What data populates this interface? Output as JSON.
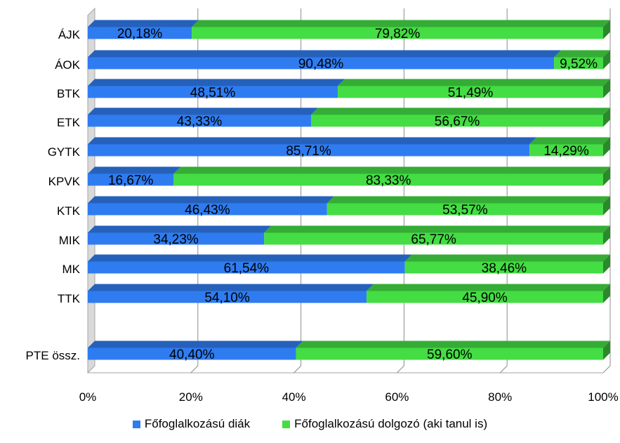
{
  "chart_data": {
    "type": "bar",
    "orientation": "horizontal",
    "stacked": "percent",
    "categories": [
      "ÁJK",
      "ÁOK",
      "BTK",
      "ETK",
      "GYTK",
      "KPVK",
      "KTK",
      "MIK",
      "MK",
      "TTK",
      "PTE össz."
    ],
    "series": [
      {
        "name": "Főfoglalkozású diák",
        "color": "#2F7CF0",
        "values": [
          20.18,
          90.48,
          48.51,
          43.33,
          85.71,
          16.67,
          46.43,
          34.23,
          61.54,
          54.1,
          40.4
        ],
        "labels": [
          "20,18%",
          "90,48%",
          "48,51%",
          "43,33%",
          "85,71%",
          "16,67%",
          "46,43%",
          "34,23%",
          "61,54%",
          "54,10%",
          "40,40%"
        ]
      },
      {
        "name": "Főfoglalkozású dolgozó (aki tanul is)",
        "color": "#44DD44",
        "values": [
          79.82,
          9.52,
          51.49,
          56.67,
          14.29,
          83.33,
          53.57,
          65.77,
          38.46,
          45.9,
          59.6
        ],
        "labels": [
          "79,82%",
          "9,52%",
          "51,49%",
          "56,67%",
          "14,29%",
          "83,33%",
          "53,57%",
          "65,77%",
          "38,46%",
          "45,90%",
          "59,60%"
        ]
      }
    ],
    "x_ticks": [
      "0%",
      "20%",
      "40%",
      "60%",
      "80%",
      "100%"
    ],
    "xlim": [
      0,
      100
    ],
    "grid": true,
    "legend_position": "bottom",
    "three_d": true
  }
}
